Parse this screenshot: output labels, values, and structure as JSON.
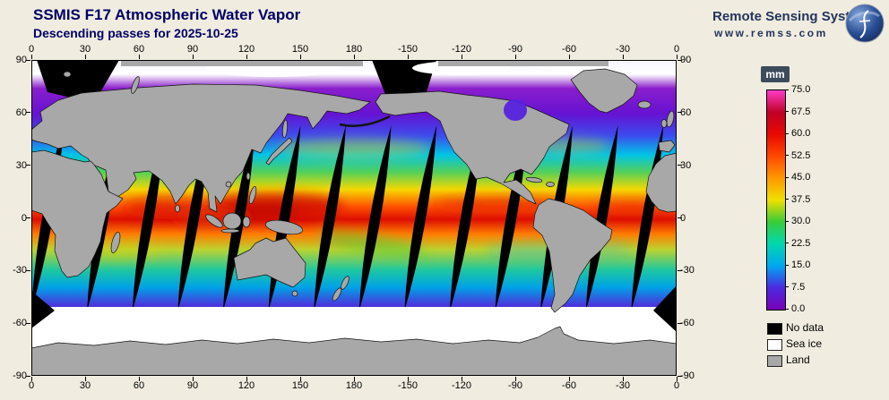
{
  "header": {
    "title": "SSMIS F17 Atmospheric Water Vapor",
    "subtitle": "Descending passes for 2025-10-25"
  },
  "branding": {
    "name": "Remote Sensing Systems",
    "url": "www.remss.com"
  },
  "map": {
    "lon_ticks": [
      "0",
      "30",
      "60",
      "90",
      "120",
      "150",
      "180",
      "-150",
      "-120",
      "-90",
      "-60",
      "-30",
      "0"
    ],
    "lat_ticks": [
      "90",
      "60",
      "30",
      "0",
      "-30",
      "-60",
      "-90"
    ],
    "swath_gap_lons": [
      8.9,
      40,
      65.3,
      90.6,
      115.9,
      141.2,
      166.5,
      191.8,
      217.1,
      242.4,
      267.7,
      293,
      318.3,
      343.6
    ]
  },
  "colorbar": {
    "unit": "mm",
    "min": 0,
    "max": 75,
    "ticks": [
      "0.0",
      "7.5",
      "15.0",
      "22.5",
      "30.0",
      "37.5",
      "45.0",
      "52.5",
      "60.0",
      "67.5",
      "75.0"
    ],
    "colors": [
      "#7a00b8",
      "#4b2ae0",
      "#00a8f0",
      "#00d8b0",
      "#38cc38",
      "#f0e000",
      "#ff9800",
      "#ff4800",
      "#e80800",
      "#c00028",
      "#ff3cc8"
    ]
  },
  "legend": {
    "items": [
      {
        "label": "No data",
        "color": "#000000"
      },
      {
        "label": "Sea ice",
        "color": "#ffffff"
      },
      {
        "label": "Land",
        "color": "#a8a8a8"
      }
    ]
  }
}
